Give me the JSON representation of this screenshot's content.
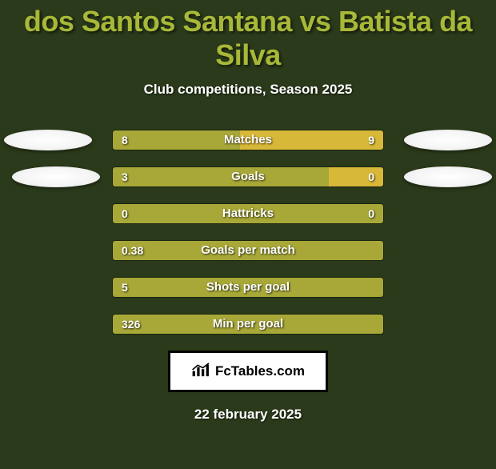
{
  "colors": {
    "background": "#2a3a1a",
    "title": "#a8b838",
    "subtitle": "#ffffff",
    "bar_player1": "#a8a838",
    "bar_player2": "#d8b838",
    "date_text": "#ffffff",
    "brand_bg": "#ffffff",
    "brand_border": "#000000"
  },
  "header": {
    "title": "dos Santos Santana vs Batista da Silva",
    "subtitle": "Club competitions, Season 2025"
  },
  "stats": [
    {
      "label": "Matches",
      "p1": "8",
      "p2": "9",
      "p1_pct": 47,
      "p2_pct": 53
    },
    {
      "label": "Goals",
      "p1": "3",
      "p2": "0",
      "p1_pct": 80,
      "p2_pct": 20
    },
    {
      "label": "Hattricks",
      "p1": "0",
      "p2": "0",
      "p1_pct": 100,
      "p2_pct": 0
    },
    {
      "label": "Goals per match",
      "p1": "0.38",
      "p2": "",
      "p1_pct": 100,
      "p2_pct": 0
    },
    {
      "label": "Shots per goal",
      "p1": "5",
      "p2": "",
      "p1_pct": 100,
      "p2_pct": 0
    },
    {
      "label": "Min per goal",
      "p1": "326",
      "p2": "",
      "p1_pct": 100,
      "p2_pct": 0
    }
  ],
  "brand": {
    "text": "FcTables.com"
  },
  "footer": {
    "date": "22 february 2025"
  }
}
